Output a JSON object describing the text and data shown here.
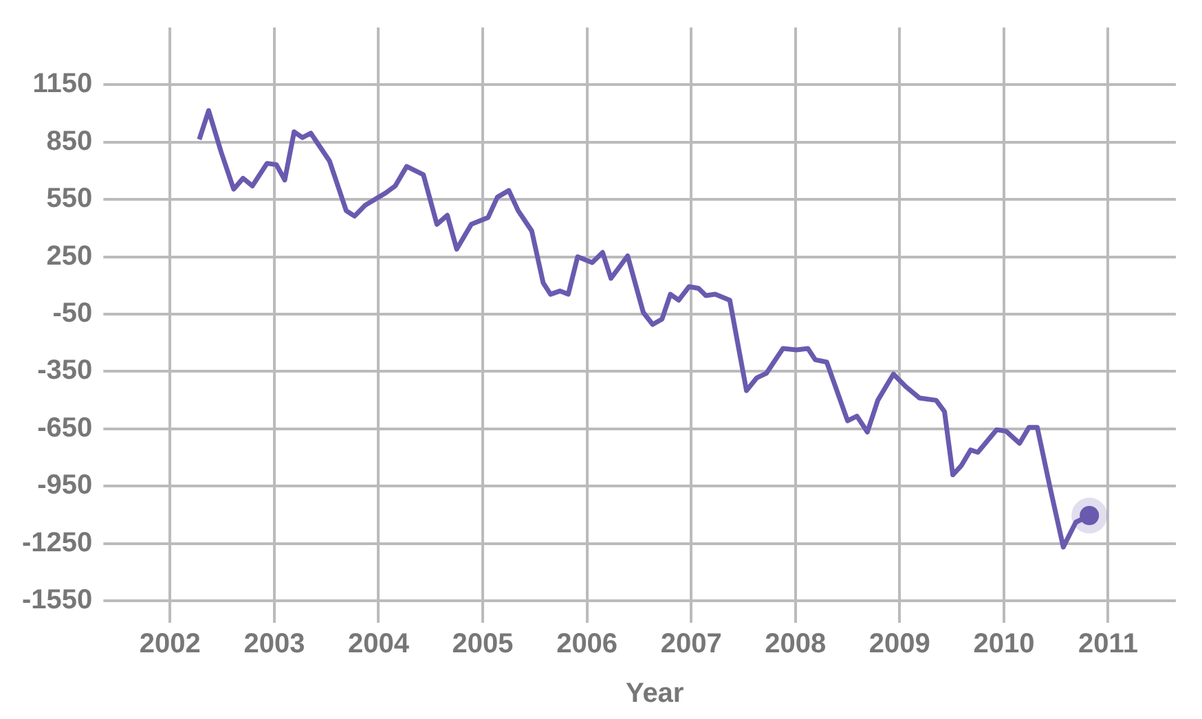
{
  "chart_data": {
    "type": "line",
    "xlabel": "Year",
    "x": [
      2002.28,
      2002.37,
      2002.49,
      2002.61,
      2002.7,
      2002.79,
      2002.93,
      2003.02,
      2003.1,
      2003.19,
      2003.27,
      2003.35,
      2003.53,
      2003.69,
      2003.77,
      2003.87,
      2004.07,
      2004.16,
      2004.27,
      2004.43,
      2004.56,
      2004.66,
      2004.75,
      2004.89,
      2005.05,
      2005.14,
      2005.25,
      2005.34,
      2005.47,
      2005.58,
      2005.65,
      2005.74,
      2005.82,
      2005.91,
      2006.05,
      2006.15,
      2006.23,
      2006.39,
      2006.54,
      2006.63,
      2006.72,
      2006.8,
      2006.88,
      2006.98,
      2007.07,
      2007.14,
      2007.23,
      2007.37,
      2007.53,
      2007.63,
      2007.72,
      2007.88,
      2008.01,
      2008.12,
      2008.19,
      2008.3,
      2008.5,
      2008.59,
      2008.69,
      2008.79,
      2008.94,
      2009.06,
      2009.19,
      2009.35,
      2009.43,
      2009.51,
      2009.59,
      2009.68,
      2009.75,
      2009.93,
      2010.02,
      2010.15,
      2010.24,
      2010.32,
      2010.44,
      2010.57,
      2010.69,
      2010.82
    ],
    "series": [
      {
        "color": "#6a5aaf",
        "values": [
          864,
          1015,
          798,
          604,
          661,
          621,
          739,
          732,
          652,
          904,
          874,
          897,
          751,
          491,
          463,
          519,
          585,
          621,
          723,
          680,
          420,
          467,
          290,
          420,
          455,
          562,
          597,
          491,
          385,
          113,
          54,
          71,
          54,
          250,
          220,
          273,
          137,
          255,
          -41,
          -104,
          -76,
          54,
          23,
          94,
          85,
          47,
          54,
          23,
          -450,
          -383,
          -360,
          -230,
          -237,
          -230,
          -289,
          -301,
          -608,
          -584,
          -667,
          -501,
          -364,
          -430,
          -489,
          -501,
          -560,
          -891,
          -844,
          -761,
          -773,
          -655,
          -662,
          -726,
          -643,
          -643,
          -950,
          -1269,
          -1139,
          -1104
        ]
      }
    ],
    "xlim": [
      2001.65,
      2011.65
    ],
    "xticks": [
      2002,
      2003,
      2004,
      2005,
      2006,
      2007,
      2008,
      2009,
      2010,
      2011
    ],
    "ylim": [
      -1550,
      1450
    ],
    "yticks": [
      -1550,
      -1250,
      -950,
      -650,
      -350,
      -50,
      250,
      550,
      850,
      1150
    ],
    "grid": true,
    "legend": false
  }
}
